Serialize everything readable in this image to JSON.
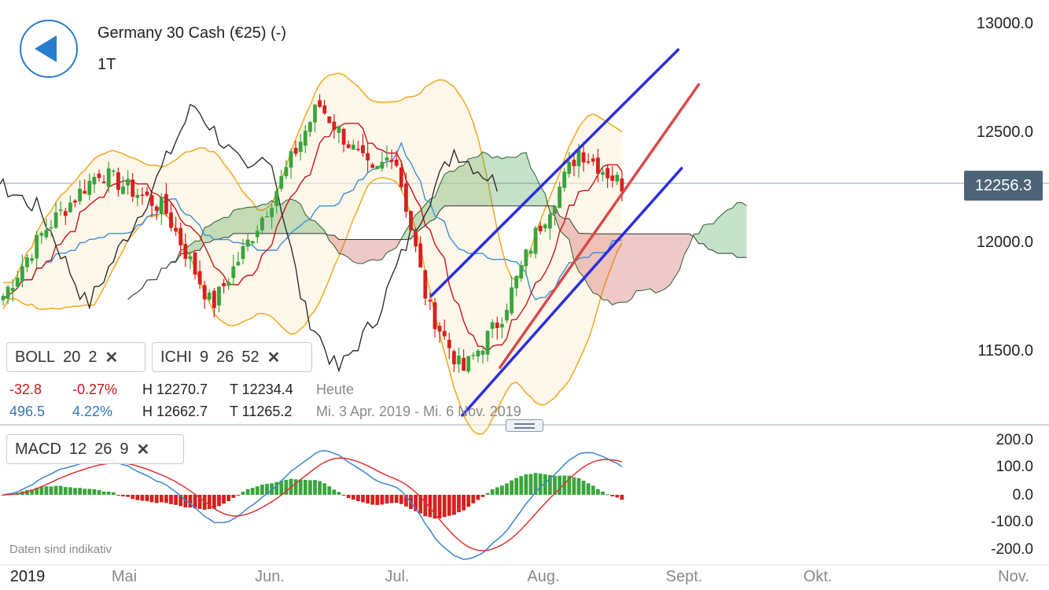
{
  "header": {
    "title": "Germany 30 Cash (€25) (-)",
    "period": "1T",
    "back_icon": "back-arrow-icon"
  },
  "price_axis": {
    "labels": [
      "13000.0",
      "12500.0",
      "12000.0",
      "11500.0"
    ],
    "current": "12256.3"
  },
  "indicators": {
    "boll": {
      "name": "BOLL",
      "p1": "20",
      "p2": "2"
    },
    "ichi": {
      "name": "ICHI",
      "p1": "9",
      "p2": "26",
      "p3": "52"
    },
    "macd": {
      "name": "MACD",
      "p1": "12",
      "p2": "26",
      "p3": "9"
    }
  },
  "stats": {
    "today": {
      "change": "-32.8",
      "pct": "-0.27%",
      "high": "H 12270.7",
      "low": "T 12234.4",
      "label": "Heute"
    },
    "range": {
      "change": "496.5",
      "pct": "4.22%",
      "high": "H 12662.7",
      "low": "T 11265.2",
      "label": "Mi. 3 Apr. 2019 - Mi. 6 Nov. 2019"
    }
  },
  "macd_axis": {
    "labels": [
      "200.0",
      "100.0",
      "0.0",
      "-100.0",
      "-200.0"
    ]
  },
  "time_axis": {
    "year": "2019",
    "labels": [
      "Mai",
      "Jun.",
      "Jul.",
      "Aug.",
      "Sept.",
      "Okt.",
      "Nov."
    ]
  },
  "disclaimer": "Daten sind indikativ",
  "colors": {
    "up": "#3aa43c",
    "down": "#d81f1f",
    "boll": "#f0a820",
    "tenkan": "#c4141a",
    "kijun": "#3c8fd6",
    "chikou": "#222222",
    "kumo_up": "#3f9a46",
    "kumo_down": "#c94a4a",
    "channel": "#2a2ee0",
    "trend": "#d94a4a",
    "macd": "#3a86d0",
    "signal": "#e03333"
  },
  "chart_data": {
    "type": "candlestick",
    "ylim": [
      11200,
      13150
    ],
    "anchor_points": [
      {
        "date": "2019-04-03",
        "close": 11750
      },
      {
        "date": "2019-04-15",
        "close": 12050
      },
      {
        "date": "2019-05-01",
        "close": 12320
      },
      {
        "date": "2019-05-20",
        "close": 12150
      },
      {
        "date": "2019-06-03",
        "close": 11700
      },
      {
        "date": "2019-06-20",
        "close": 12180
      },
      {
        "date": "2019-07-04",
        "close": 12630
      },
      {
        "date": "2019-07-20",
        "close": 12300
      },
      {
        "date": "2019-07-26",
        "close": 12420
      },
      {
        "date": "2019-08-05",
        "close": 11700
      },
      {
        "date": "2019-08-15",
        "close": 11400
      },
      {
        "date": "2019-08-26",
        "close": 11640
      },
      {
        "date": "2019-09-05",
        "close": 12020
      },
      {
        "date": "2019-09-18",
        "close": 12420
      },
      {
        "date": "2019-10-01",
        "close": 12256
      }
    ],
    "macd_ylim": [
      -240,
      230
    ]
  }
}
